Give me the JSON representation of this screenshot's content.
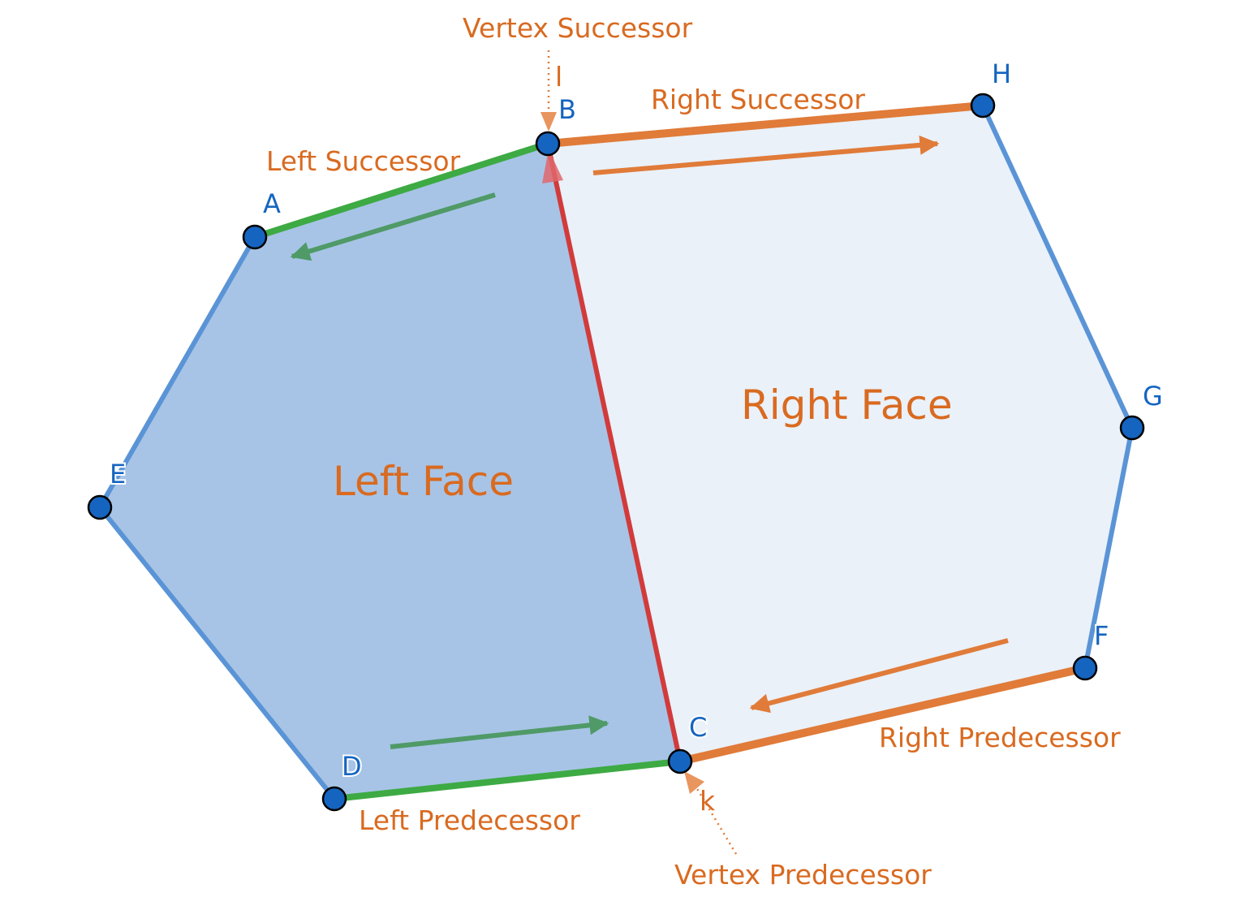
{
  "colors": {
    "orange": "#e07b39",
    "orange_text": "#d96a20",
    "green": "#3daa44",
    "green_arrow": "#4f9a67",
    "red": "#d23b3b",
    "blue_edge": "#5a94d6",
    "blue_vertex": "#1565c0",
    "left_face_fill": "#a7c4e6",
    "right_face_fill": "#eaf1f9"
  },
  "faces": {
    "left": "Left Face",
    "right": "Right Face"
  },
  "edges": {
    "left_successor": "Left Successor",
    "right_successor": "Right Successor",
    "left_predecessor": "Left Predecessor",
    "right_predecessor": "Right Predecessor",
    "vertex_successor": "Vertex Successor",
    "vertex_predecessor": "Vertex Predecessor",
    "vertex_successor_edge": "l",
    "vertex_predecessor_edge": "k"
  },
  "vertices": {
    "A": "A",
    "B": "B",
    "C": "C",
    "D": "D",
    "E": "E",
    "F": "F",
    "G": "G",
    "H": "H"
  }
}
